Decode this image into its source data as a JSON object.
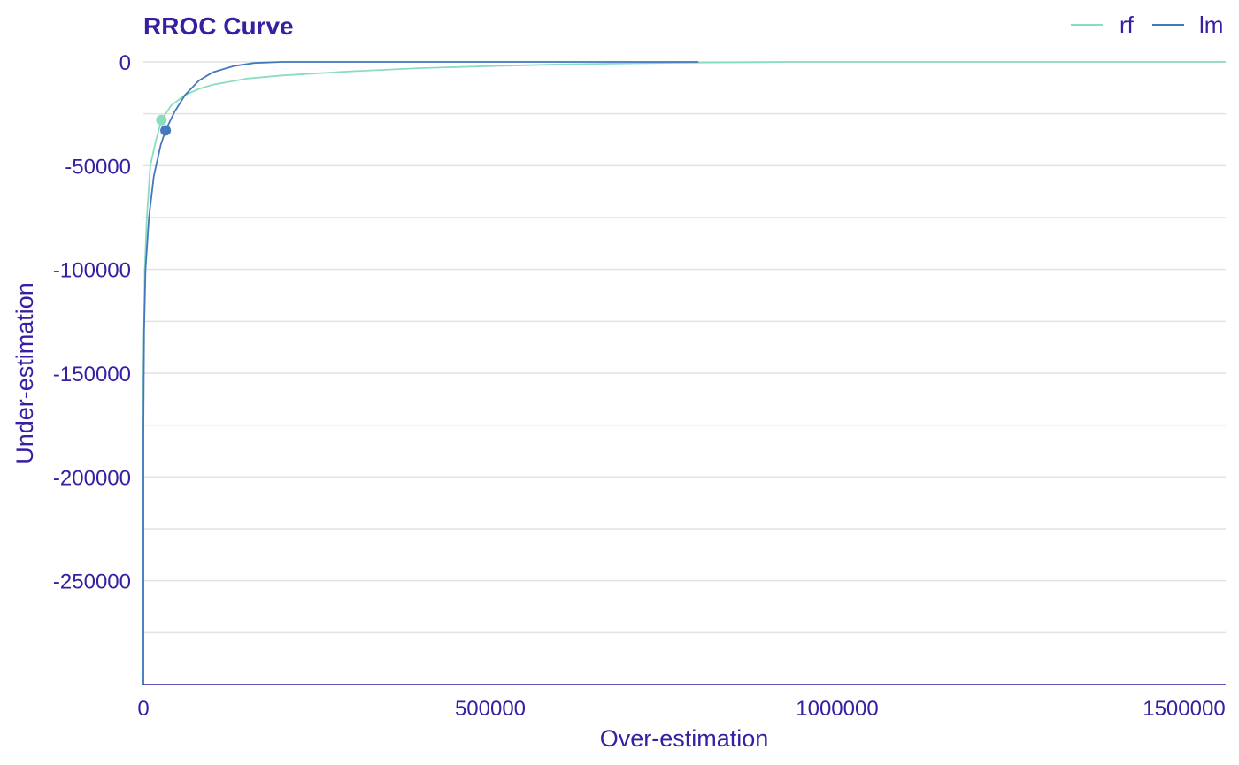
{
  "chart_data": {
    "type": "line",
    "title": "RROC Curve",
    "xlabel": "Over-estimation",
    "ylabel": "Under-estimation",
    "xlim": [
      0,
      1560000
    ],
    "ylim": [
      -300000,
      0
    ],
    "x_ticks": [
      0,
      500000,
      1000000,
      1500000
    ],
    "x_tick_labels": [
      "0",
      "500000",
      "1000000",
      "1500000"
    ],
    "y_ticks": [
      0,
      -50000,
      -100000,
      -150000,
      -200000,
      -250000
    ],
    "y_tick_labels": [
      "0",
      "-50000",
      "-100000",
      "-150000",
      "-200000",
      "-250000"
    ],
    "y_minor_ticks": [
      -25000,
      -75000,
      -125000,
      -175000,
      -225000,
      -275000
    ],
    "grid": true,
    "legend_position": "top-right",
    "series": [
      {
        "name": "rf",
        "color": "#8bdcbe",
        "points": [
          [
            0,
            -300000
          ],
          [
            0,
            -150000
          ],
          [
            2000,
            -100000
          ],
          [
            5000,
            -75000
          ],
          [
            10000,
            -50000
          ],
          [
            18000,
            -38000
          ],
          [
            26000,
            -28000
          ],
          [
            40000,
            -21000
          ],
          [
            60000,
            -16000
          ],
          [
            80000,
            -13000
          ],
          [
            100000,
            -11000
          ],
          [
            150000,
            -8000
          ],
          [
            200000,
            -6500
          ],
          [
            300000,
            -4500
          ],
          [
            400000,
            -3000
          ],
          [
            500000,
            -2000
          ],
          [
            600000,
            -1200
          ],
          [
            700000,
            -700
          ],
          [
            800000,
            -300
          ],
          [
            900000,
            -100
          ],
          [
            930000,
            0
          ],
          [
            1560000,
            0
          ]
        ],
        "marker": [
          26000,
          -28000
        ]
      },
      {
        "name": "lm",
        "color": "#4378bf",
        "points": [
          [
            0,
            -300000
          ],
          [
            0,
            -180000
          ],
          [
            1000,
            -130000
          ],
          [
            3000,
            -100000
          ],
          [
            8000,
            -75000
          ],
          [
            15000,
            -55000
          ],
          [
            25000,
            -40000
          ],
          [
            32000,
            -33000
          ],
          [
            45000,
            -24000
          ],
          [
            60000,
            -16000
          ],
          [
            80000,
            -9000
          ],
          [
            100000,
            -5000
          ],
          [
            130000,
            -2000
          ],
          [
            160000,
            -500
          ],
          [
            200000,
            0
          ],
          [
            800000,
            0
          ]
        ],
        "marker": [
          32000,
          -33000
        ]
      }
    ]
  },
  "colors": {
    "text": "#371ea3",
    "grid": "#e2e2e5",
    "axis": "#371ea3"
  }
}
